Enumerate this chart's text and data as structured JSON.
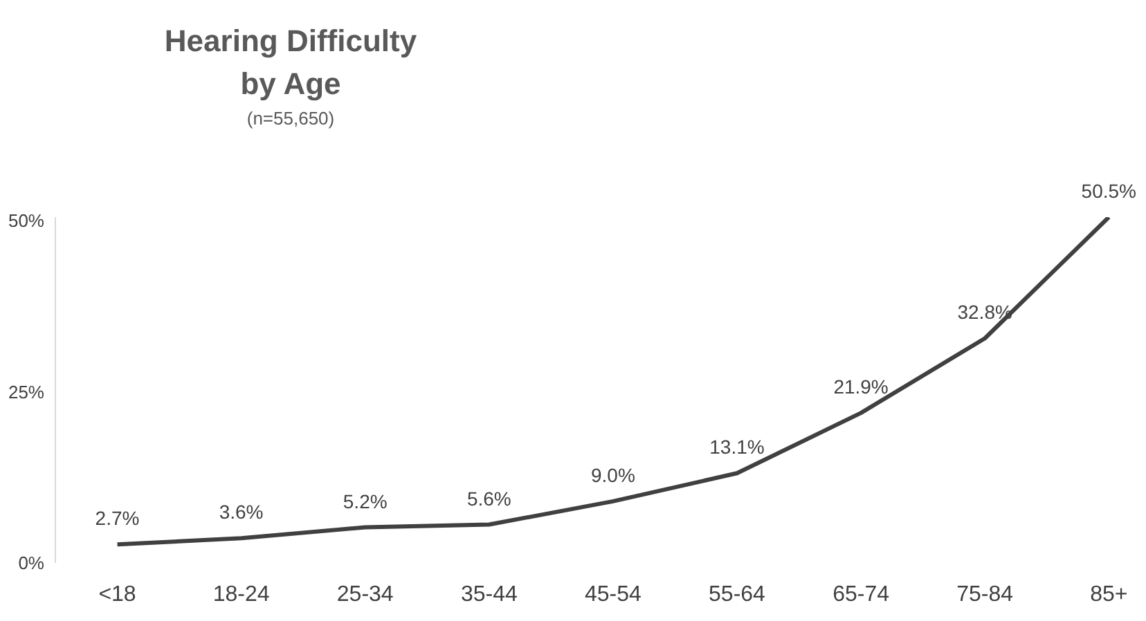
{
  "chart_data": {
    "type": "line",
    "title": "Hearing Difficulty\nby Age",
    "subtitle": "(n=55,650)",
    "categories": [
      "<18",
      "18-24",
      "25-34",
      "35-44",
      "45-54",
      "55-64",
      "65-74",
      "75-84",
      "85+"
    ],
    "series": [
      {
        "color": "#404040",
        "values": [
          2.7,
          3.6,
          5.2,
          5.6,
          9.0,
          13.1,
          21.9,
          32.8,
          50.5
        ],
        "value_labels": [
          "2.7%",
          "3.6%",
          "5.2%",
          "5.6%",
          "9.0%",
          "13.1%",
          "21.9%",
          "32.8%",
          "50.5%"
        ]
      }
    ],
    "ylim": [
      0,
      50.5
    ],
    "yticks": [
      {
        "value": 0,
        "label": "0%"
      },
      {
        "value": 25,
        "label": "25%"
      },
      {
        "value": 50,
        "label": "50%"
      }
    ],
    "grid": false,
    "legend": false,
    "marker": "none",
    "line_style": "solid"
  }
}
